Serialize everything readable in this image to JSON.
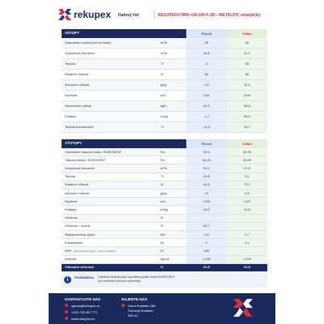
{
  "header": {
    "brand": "rekupex",
    "doc_label": "Datový list",
    "product": "RECUTECH RFK+18-100-F-28 – METALPIC entalpický"
  },
  "inputs": {
    "title": "VSTUPY",
    "columns": [
      "Přívod",
      "Odtah"
    ],
    "rows": [
      {
        "label": "Standardní vzduchové množství",
        "unit": "m³/h",
        "supply": "50",
        "exhaust": "50"
      },
      {
        "label": "Vzduchové množství",
        "unit": "m³/h",
        "supply": "45,8",
        "exhaust": "51,2"
      },
      {
        "label": "Teplota",
        "unit": "°C",
        "supply": "-5",
        "exhaust": "25"
      },
      {
        "label": "Relativní vlhkost",
        "unit": "%",
        "supply": "60",
        "exhaust": "60"
      },
      {
        "label": "Absolutní vlhkost",
        "unit": "g/kg",
        "supply": "1,6",
        "exhaust": "11,9"
      },
      {
        "label": "Rychlost",
        "unit": "m/s",
        "supply": "0,61",
        "exhaust": "0,68"
      },
      {
        "label": "Hmotnostní průtok",
        "unit": "kg/h",
        "supply": "60,2",
        "exhaust": "60,2"
      },
      {
        "label": "Entalpie",
        "unit": "kJ/kg",
        "supply": "-1,1",
        "exhaust": "55,5"
      },
      {
        "label": "Teplota kondenzace",
        "unit": "°C",
        "supply": "-11,6",
        "exhaust": "16,7"
      }
    ]
  },
  "outputs": {
    "title": "VÝSTUPY",
    "columns": [
      "Přívod",
      "Odtah"
    ],
    "rows": [
      {
        "label": "Standardní tlaková ztráta / EUROVENT",
        "unit": "Pa",
        "supply": "39,3",
        "exhaust": "42,25"
      },
      {
        "label": "Tlaková ztráta / EUROVENT",
        "unit": "Pa",
        "supply": "34,33",
        "exhaust": "43,83"
      },
      {
        "label": "Vzduchové množství",
        "unit": "m³/h",
        "supply": "50,2",
        "exhaust": "47,5"
      },
      {
        "label": "Teplota",
        "unit": "°C",
        "supply": "20,8",
        "exhaust": "3,1"
      },
      {
        "label": "Relativní vlhkost",
        "unit": "%",
        "supply": "64,9",
        "exhaust": "73,7"
      },
      {
        "label": "Absolutní vlhkost",
        "unit": "g/kg",
        "supply": "10",
        "exhaust": "3,5"
      },
      {
        "label": "Rychlost",
        "unit": "m/s",
        "supply": "0,66",
        "exhaust": "0,63"
      },
      {
        "label": "Entalpie",
        "unit": "kJ/kg",
        "supply": "46,3",
        "exhaust": "11,8"
      },
      {
        "label": "Účinnost",
        "unit": "%"
      },
      {
        "label": "Účinnost – suchá",
        "unit": "%",
        "supply": "63,7"
      },
      {
        "label": "Rekuperovaný výkon",
        "unit": "kW",
        "supply": "0,6",
        "exhaust": "0,7"
      },
      {
        "label": "Kondenzace",
        "unit": "l/h",
        "supply": "0",
        "exhaust": "0,1"
      },
      {
        "label": "NKP",
        "sub": "(Rekuperovaný výkon - výkon ventilátorů)",
        "unit": "W",
        "supply": "430"
      },
      {
        "label": "Hustota",
        "unit": "kg/m3",
        "supply": "1,296",
        "exhaust": "1,224"
      },
      {
        "label": "Vlhkostní účinnost",
        "unit": "%",
        "supply": "61,5",
        "exhaust": "61,5",
        "highlight": true
      }
    ]
  },
  "note": {
    "label": "POZNÁMKA:",
    "text": "Uvedené hodnoty jsou vypočteny podle norem EUROVENT pro navržené provozní podmínky."
  },
  "footer": {
    "contact_title": "KONTAKTUJTE NÁS",
    "contacts": [
      "sprava@rekupex.cz",
      "+420 733 307 772",
      "www.rekupex.cz"
    ],
    "address_title": "NAJDETE NÁS",
    "address": [
      "Horní Kostelec 284",
      "Červený Kostelec",
      "549 41"
    ]
  }
}
